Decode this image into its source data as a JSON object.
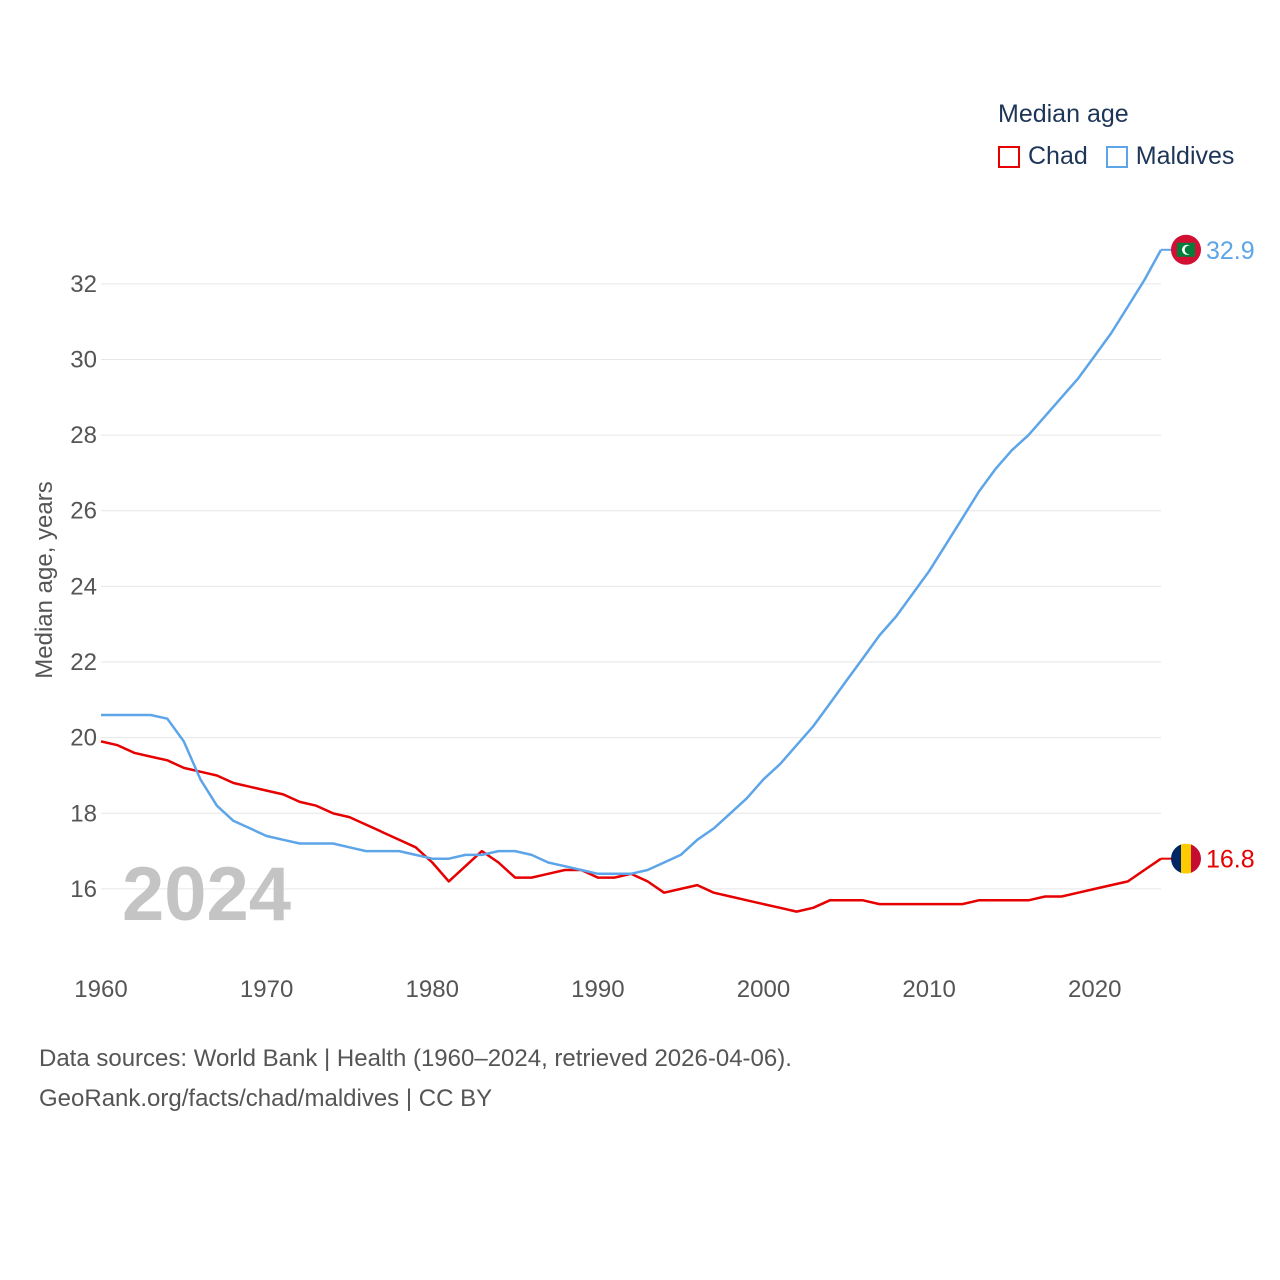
{
  "chart_data": {
    "type": "line",
    "title": "",
    "xlabel": "",
    "ylabel": "Median age, years",
    "ylim": [
      14.2,
      33.0
    ],
    "xlim": [
      1960,
      2024
    ],
    "yticks": [
      16,
      18,
      20,
      22,
      24,
      26,
      28,
      30,
      32
    ],
    "xticks": [
      1960,
      1970,
      1980,
      1990,
      2000,
      2010,
      2020
    ],
    "grid": true,
    "year_watermark": "2024",
    "legend": {
      "title": "Median age",
      "placement": "top-right"
    },
    "x": [
      1960,
      1961,
      1962,
      1963,
      1964,
      1965,
      1966,
      1967,
      1968,
      1969,
      1970,
      1971,
      1972,
      1973,
      1974,
      1975,
      1976,
      1977,
      1978,
      1979,
      1980,
      1981,
      1982,
      1983,
      1984,
      1985,
      1986,
      1987,
      1988,
      1989,
      1990,
      1991,
      1992,
      1993,
      1994,
      1995,
      1996,
      1997,
      1998,
      1999,
      2000,
      2001,
      2002,
      2003,
      2004,
      2005,
      2006,
      2007,
      2008,
      2009,
      2010,
      2011,
      2012,
      2013,
      2014,
      2015,
      2016,
      2017,
      2018,
      2019,
      2020,
      2021,
      2022,
      2023,
      2024
    ],
    "series": [
      {
        "name": "Chad",
        "color": "#e60000",
        "end_label": "16.8",
        "flag": "chad-flag",
        "values": [
          19.9,
          19.8,
          19.6,
          19.5,
          19.4,
          19.2,
          19.1,
          19.0,
          18.8,
          18.7,
          18.6,
          18.5,
          18.3,
          18.2,
          18.0,
          17.9,
          17.7,
          17.5,
          17.3,
          17.1,
          16.7,
          16.2,
          16.6,
          17.0,
          16.7,
          16.3,
          16.3,
          16.4,
          16.5,
          16.5,
          16.3,
          16.3,
          16.4,
          16.2,
          15.9,
          16.0,
          16.1,
          15.9,
          15.8,
          15.7,
          15.6,
          15.5,
          15.4,
          15.5,
          15.7,
          15.7,
          15.7,
          15.6,
          15.6,
          15.6,
          15.6,
          15.6,
          15.6,
          15.7,
          15.7,
          15.7,
          15.7,
          15.8,
          15.8,
          15.9,
          16.0,
          16.1,
          16.2,
          16.5,
          16.8
        ]
      },
      {
        "name": "Maldives",
        "color": "#5da5e8",
        "end_label": "32.9",
        "flag": "maldives-flag",
        "values": [
          20.6,
          20.6,
          20.6,
          20.6,
          20.5,
          19.9,
          18.9,
          18.2,
          17.8,
          17.6,
          17.4,
          17.3,
          17.2,
          17.2,
          17.2,
          17.1,
          17.0,
          17.0,
          17.0,
          16.9,
          16.8,
          16.8,
          16.9,
          16.9,
          17.0,
          17.0,
          16.9,
          16.7,
          16.6,
          16.5,
          16.4,
          16.4,
          16.4,
          16.5,
          16.7,
          16.9,
          17.3,
          17.6,
          18.0,
          18.4,
          18.9,
          19.3,
          19.8,
          20.3,
          20.9,
          21.5,
          22.1,
          22.7,
          23.2,
          23.8,
          24.4,
          25.1,
          25.8,
          26.5,
          27.1,
          27.6,
          28.0,
          28.5,
          29.0,
          29.5,
          30.1,
          30.7,
          31.4,
          32.1,
          32.9
        ]
      }
    ]
  },
  "footer": {
    "line1": "Data sources: World Bank | Health (1960–2024, retrieved 2026-04-06).",
    "line2": "GeoRank.org/facts/chad/maldives | CC BY"
  }
}
